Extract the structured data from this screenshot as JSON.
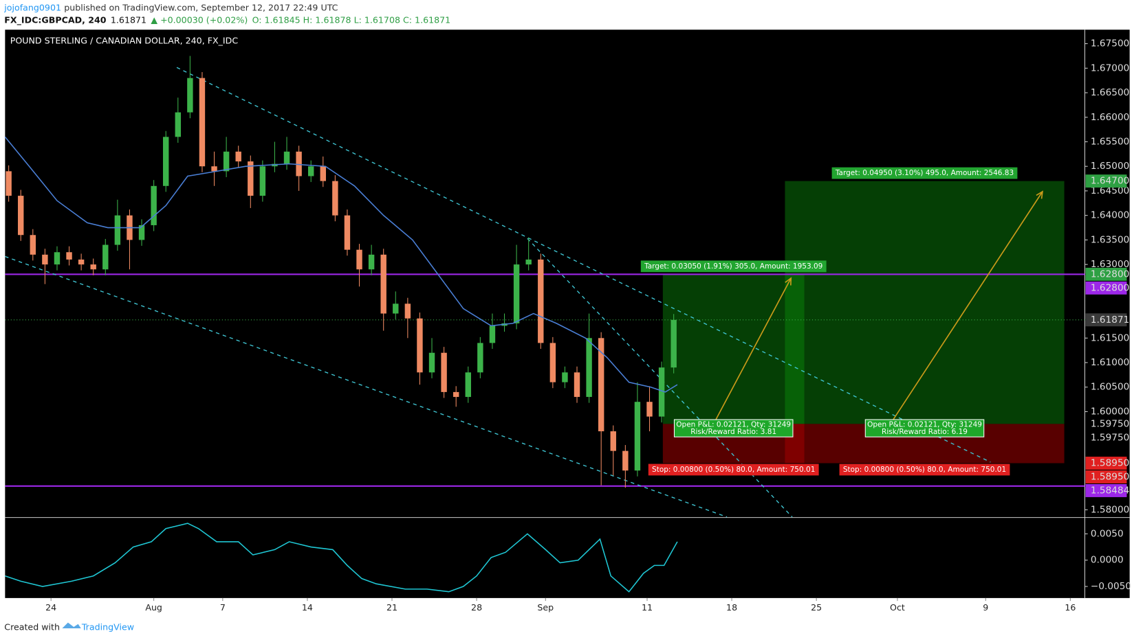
{
  "header": {
    "author": "jojofang0901",
    "published": "published on TradingView.com, September 12, 2017 22:49 UTC",
    "symbol": "FX_IDC:GBPCAD, 240",
    "last": "1.61871",
    "change": "▲ +0.00030 (+0.02%)",
    "ohlc": "O: 1.61845 H: 1.61878 L: 1.61708 C: 1.61871"
  },
  "chart_data": [
    {
      "type": "candlestick",
      "title": "POUND STERLING / CANADIAN DOLLAR, 240, FX_IDC",
      "up_color": "#3cb34a",
      "down_color": "#ef8a62",
      "x": [
        -3.5,
        -2.5,
        -1.5,
        -0.5,
        0.5,
        1.5,
        2.5,
        3.5,
        4.5,
        5.5,
        6.5,
        7.5,
        8.5,
        9.5,
        10.5,
        11.5,
        12.5,
        13.5,
        14.5,
        15.5,
        16.5,
        17.5,
        18.5,
        19.5,
        20.5,
        21.5,
        22.5,
        23.5,
        24.5,
        25.5,
        26.5,
        27.5,
        28.5,
        29.5,
        30.5,
        31.5,
        32.5,
        33.5,
        34.5,
        35.5,
        36.5,
        37.5,
        38.5,
        39.5,
        40.5,
        41.5,
        42.5,
        43.5,
        44.5,
        45.5,
        46.5,
        47.5,
        48.5,
        49.5,
        50.5,
        51.5
      ],
      "open": [
        1.649,
        1.644,
        1.636,
        1.632,
        1.63,
        1.6325,
        1.631,
        1.63,
        1.629,
        1.634,
        1.64,
        1.635,
        1.638,
        1.646,
        1.656,
        1.661,
        1.668,
        1.65,
        1.649,
        1.653,
        1.651,
        1.644,
        1.65,
        1.6505,
        1.653,
        1.648,
        1.65,
        1.647,
        1.64,
        1.633,
        1.629,
        1.632,
        1.62,
        1.622,
        1.619,
        1.608,
        1.612,
        1.604,
        1.603,
        1.608,
        1.614,
        1.6175,
        1.618,
        1.63,
        1.631,
        1.614,
        1.606,
        1.608,
        1.603,
        1.615,
        1.596,
        1.592,
        1.588,
        1.602,
        1.599,
        1.609
      ],
      "high": [
        1.6502,
        1.6452,
        1.6372,
        1.6332,
        1.6337,
        1.6337,
        1.6322,
        1.6312,
        1.6352,
        1.6432,
        1.6412,
        1.6392,
        1.6472,
        1.6572,
        1.664,
        1.6725,
        1.6692,
        1.653,
        1.656,
        1.6542,
        1.6522,
        1.6512,
        1.655,
        1.656,
        1.6542,
        1.6512,
        1.652,
        1.6482,
        1.6412,
        1.6342,
        1.634,
        1.6332,
        1.6245,
        1.6232,
        1.6202,
        1.615,
        1.6132,
        1.6052,
        1.6092,
        1.6152,
        1.62,
        1.62,
        1.634,
        1.6355,
        1.6322,
        1.6152,
        1.6092,
        1.6092,
        1.62,
        1.6162,
        1.5972,
        1.5932,
        1.606,
        1.6052,
        1.6102,
        1.6199
      ],
      "low": [
        1.6428,
        1.6348,
        1.6308,
        1.626,
        1.6288,
        1.6298,
        1.6288,
        1.6278,
        1.6278,
        1.6328,
        1.629,
        1.6338,
        1.6368,
        1.6448,
        1.6548,
        1.6598,
        1.6488,
        1.646,
        1.6478,
        1.6498,
        1.6415,
        1.6428,
        1.6488,
        1.6493,
        1.645,
        1.6468,
        1.6458,
        1.6388,
        1.6318,
        1.6255,
        1.6278,
        1.6165,
        1.6188,
        1.615,
        1.6055,
        1.6068,
        1.6028,
        1.601,
        1.6018,
        1.6068,
        1.6128,
        1.6163,
        1.6168,
        1.6288,
        1.6128,
        1.6048,
        1.6048,
        1.6018,
        1.6018,
        1.585,
        1.587,
        1.5845,
        1.5868,
        1.596,
        1.5978,
        1.6078
      ],
      "close": [
        1.644,
        1.636,
        1.632,
        1.63,
        1.6325,
        1.631,
        1.63,
        1.629,
        1.634,
        1.64,
        1.635,
        1.638,
        1.646,
        1.656,
        1.661,
        1.668,
        1.65,
        1.649,
        1.653,
        1.651,
        1.644,
        1.65,
        1.6505,
        1.653,
        1.648,
        1.65,
        1.647,
        1.64,
        1.633,
        1.629,
        1.632,
        1.62,
        1.622,
        1.619,
        1.608,
        1.612,
        1.604,
        1.603,
        1.608,
        1.614,
        1.6175,
        1.618,
        1.63,
        1.631,
        1.614,
        1.606,
        1.608,
        1.603,
        1.615,
        1.596,
        1.592,
        1.588,
        1.602,
        1.599,
        1.609,
        1.61871
      ],
      "moving_average": {
        "color": "#4a7fd6",
        "x": [
          -3.8,
          -1.8,
          0.5,
          3.0,
          4.7,
          7.4,
          9.5,
          11.3,
          13.7,
          16.1,
          19.7,
          22.7,
          25.1,
          27.5,
          29.9,
          31.7,
          34.1,
          36.4,
          38.2,
          39.9,
          41.8,
          44.2,
          46.0,
          47.8,
          49.6,
          50.8,
          51.8
        ],
        "values": [
          1.656,
          1.65,
          1.643,
          1.6385,
          1.6375,
          1.6375,
          1.642,
          1.648,
          1.649,
          1.65,
          1.6505,
          1.65,
          1.646,
          1.64,
          1.635,
          1.629,
          1.621,
          1.6175,
          1.618,
          1.62,
          1.618,
          1.615,
          1.611,
          1.606,
          1.605,
          1.604,
          1.6055
        ]
      },
      "hlines": [
        {
          "value": 1.628,
          "color": "#9c27e8"
        },
        {
          "value": 1.58484,
          "color": "#9c27e8"
        }
      ],
      "last_price": 1.61871,
      "last_price_color": "#3cb34a",
      "trendlines": [
        {
          "color": "#3fc5d3",
          "x": [
            10.4,
            77.7
          ],
          "y": [
            1.67015,
            1.58971
          ]
        },
        {
          "color": "#3fc5d3",
          "x": [
            -3.8,
            55.9
          ],
          "y": [
            1.63162,
            1.57853
          ]
        },
        {
          "color": "#3fc5d3",
          "x": [
            39.4,
            61.3
          ],
          "y": [
            1.63529,
            1.57853
          ]
        }
      ],
      "arrows": [
        {
          "color": "#c99a1a",
          "x": [
            54.7,
            61.2
          ],
          "y": [
            1.59706,
            1.62721
          ]
        },
        {
          "color": "#c99a1a",
          "x": [
            69.5,
            82.0
          ],
          "y": [
            1.5978,
            1.64485
          ]
        }
      ],
      "positions": [
        {
          "x": [
            50.6,
            62.3
          ],
          "entry": 1.5975,
          "target": 1.628,
          "stop": 1.5895,
          "target_label": "Target: 0.03050 (1.91%) 305.0, Amount: 1953.09",
          "pnl_label": "Open P&L: 0.02121, Qty: 31249",
          "rr_label": "Risk/Reward Ratio: 3.81",
          "stop_label": "Stop: 0.00800 (0.50%) 80.0, Amount: 750.01"
        },
        {
          "x": [
            60.7,
            83.8
          ],
          "entry": 1.5975,
          "target": 1.647,
          "stop": 1.5895,
          "target_label": "Target: 0.04950 (3.10%) 495.0, Amount: 2546.83",
          "pnl_label": "Open P&L: 0.02121, Qty: 31249",
          "rr_label": "Risk/Reward Ratio: 6.19",
          "stop_label": "Stop: 0.00800 (0.50%) 80.0, Amount: 750.01"
        }
      ],
      "price_labels": [
        {
          "value": 1.647,
          "label": "1.64700",
          "color": "#2ea043"
        },
        {
          "value": 1.628,
          "label": "1.62800",
          "color": "#2ea043"
        },
        {
          "value": 1.628,
          "label": "1.62800",
          "color": "#9c27e8"
        },
        {
          "value": 1.61871,
          "label": "1.61871",
          "color": "#3a3a3a"
        },
        {
          "value": 1.5975,
          "label": "1.59750",
          "color": null
        },
        {
          "value": 1.5975,
          "label": "1.59750",
          "color": null
        },
        {
          "value": 1.5895,
          "label": "1.58950",
          "color": "#e02020"
        },
        {
          "value": 1.5895,
          "label": "1.58950",
          "color": "#e02020"
        },
        {
          "value": 1.58484,
          "label": "1.58484",
          "color": "#9c27e8"
        }
      ],
      "xlim": [
        -3.8,
        85.5
      ],
      "ylim": [
        1.5785,
        1.6777
      ],
      "xticks": [
        {
          "value": 0,
          "label": "24"
        },
        {
          "value": 8.5,
          "label": "Aug"
        },
        {
          "value": 14.2,
          "label": "7"
        },
        {
          "value": 21.2,
          "label": "14"
        },
        {
          "value": 28.2,
          "label": "21"
        },
        {
          "value": 35.2,
          "label": "28"
        },
        {
          "value": 40.9,
          "label": "Sep"
        },
        {
          "value": 49.3,
          "label": "11"
        },
        {
          "value": 56.3,
          "label": "18"
        },
        {
          "value": 63.3,
          "label": "25"
        },
        {
          "value": 70.0,
          "label": "Oct"
        },
        {
          "value": 77.3,
          "label": "9"
        },
        {
          "value": 84.3,
          "label": "16"
        }
      ],
      "yticks": [
        {
          "value": 1.675,
          "label": "1.67500"
        },
        {
          "value": 1.67,
          "label": "1.67000"
        },
        {
          "value": 1.665,
          "label": "1.66500"
        },
        {
          "value": 1.66,
          "label": "1.66000"
        },
        {
          "value": 1.655,
          "label": "1.65500"
        },
        {
          "value": 1.65,
          "label": "1.65000"
        },
        {
          "value": 1.645,
          "label": "1.64500"
        },
        {
          "value": 1.64,
          "label": "1.64000"
        },
        {
          "value": 1.635,
          "label": "1.63500"
        },
        {
          "value": 1.63,
          "label": "1.63000"
        },
        {
          "value": 1.615,
          "label": "1.61500"
        },
        {
          "value": 1.61,
          "label": "1.61000"
        },
        {
          "value": 1.605,
          "label": "1.60500"
        },
        {
          "value": 1.6,
          "label": "1.60000"
        },
        {
          "value": 1.58,
          "label": "1.58000"
        }
      ]
    },
    {
      "type": "line",
      "color": "#1fc7d4",
      "x": [
        -3.8,
        -2.5,
        -0.7,
        1.7,
        3.5,
        5.3,
        6.8,
        8.3,
        9.5,
        11.3,
        12.2,
        13.7,
        15.5,
        16.7,
        18.5,
        19.7,
        21.5,
        23.3,
        24.5,
        25.7,
        26.9,
        29.3,
        31.1,
        32.9,
        34.1,
        35.2,
        36.4,
        37.6,
        39.4,
        40.9,
        42.1,
        43.6,
        45.4,
        46.3,
        47.8,
        49.0,
        49.9,
        50.7,
        51.8
      ],
      "values": [
        -0.003,
        -0.004,
        -0.005,
        -0.004,
        -0.003,
        -0.0005,
        0.0025,
        0.0035,
        0.006,
        0.007,
        0.006,
        0.0035,
        0.0035,
        0.001,
        0.002,
        0.0035,
        0.0025,
        0.002,
        -0.001,
        -0.0035,
        -0.0045,
        -0.0055,
        -0.0055,
        -0.006,
        -0.005,
        -0.003,
        0.0005,
        0.0015,
        0.005,
        0.002,
        -0.0005,
        0.0,
        0.004,
        -0.003,
        -0.006,
        -0.0025,
        -0.001,
        -0.001,
        0.0035
      ],
      "xlim": [
        -3.8,
        85.5
      ],
      "ylim": [
        -0.0072,
        0.0079
      ],
      "yticks": [
        {
          "value": 0.005,
          "label": "0.0050"
        },
        {
          "value": 0,
          "label": "0.0000"
        },
        {
          "value": -0.005,
          "label": "−0.0050"
        }
      ]
    }
  ],
  "footer": {
    "created": "Created with",
    "brand": "TradingView"
  }
}
